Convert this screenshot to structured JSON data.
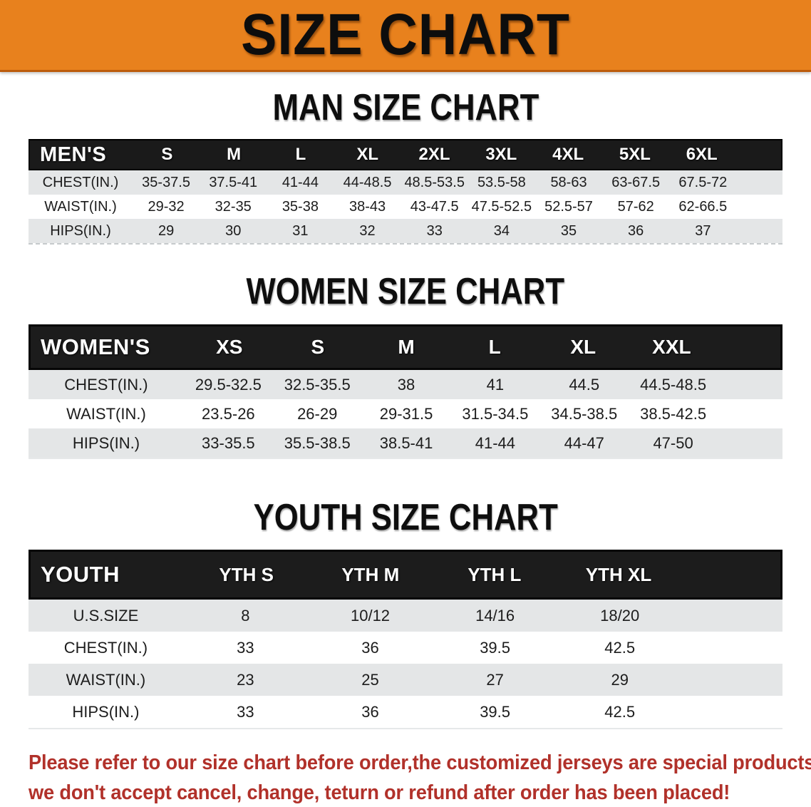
{
  "banner": {
    "title": "SIZE CHART"
  },
  "colors": {
    "banner_orange": "#E8811D",
    "banner_edge": "#BC5B0B",
    "header_black": "#1a1a1a",
    "row_gray": "#E4E6E7",
    "disclaimer_red": "#B1312A"
  },
  "chart_data": [
    {
      "type": "table",
      "title": "MAN SIZE CHART",
      "header_label": "MEN'S",
      "columns": [
        "S",
        "M",
        "L",
        "XL",
        "2XL",
        "3XL",
        "4XL",
        "5XL",
        "6XL"
      ],
      "rows": [
        {
          "label": "CHEST(IN.)",
          "values": [
            "35-37.5",
            "37.5-41",
            "41-44",
            "44-48.5",
            "48.5-53.5",
            "53.5-58",
            "58-63",
            "63-67.5",
            "67.5-72"
          ]
        },
        {
          "label": "WAIST(IN.)",
          "values": [
            "29-32",
            "32-35",
            "35-38",
            "38-43",
            "43-47.5",
            "47.5-52.5",
            "52.5-57",
            "57-62",
            "62-66.5"
          ]
        },
        {
          "label": "HIPS(IN.)",
          "values": [
            "29",
            "30",
            "31",
            "32",
            "33",
            "34",
            "35",
            "36",
            "37"
          ]
        }
      ]
    },
    {
      "type": "table",
      "title": "WOMEN SIZE CHART",
      "header_label": "WOMEN'S",
      "columns": [
        "XS",
        "S",
        "M",
        "L",
        "XL",
        "XXL"
      ],
      "rows": [
        {
          "label": "CHEST(IN.)",
          "values": [
            "29.5-32.5",
            "32.5-35.5",
            "38",
            "41",
            "44.5",
            "44.5-48.5"
          ]
        },
        {
          "label": "WAIST(IN.)",
          "values": [
            "23.5-26",
            "26-29",
            "29-31.5",
            "31.5-34.5",
            "34.5-38.5",
            "38.5-42.5"
          ]
        },
        {
          "label": "HIPS(IN.)",
          "values": [
            "33-35.5",
            "35.5-38.5",
            "38.5-41",
            "41-44",
            "44-47",
            "47-50"
          ]
        }
      ]
    },
    {
      "type": "table",
      "title": "YOUTH SIZE CHART",
      "header_label": "YOUTH",
      "columns": [
        "YTH S",
        "YTH M",
        "YTH L",
        "YTH XL"
      ],
      "rows": [
        {
          "label": "U.S.SIZE",
          "values": [
            "8",
            "10/12",
            "14/16",
            "18/20"
          ]
        },
        {
          "label": "CHEST(IN.)",
          "values": [
            "33",
            "36",
            "39.5",
            "42.5"
          ]
        },
        {
          "label": "WAIST(IN.)",
          "values": [
            "23",
            "25",
            "27",
            "29"
          ]
        },
        {
          "label": "HIPS(IN.)",
          "values": [
            "33",
            "36",
            "39.5",
            "42.5"
          ]
        }
      ]
    }
  ],
  "disclaimer": {
    "line1": "Please refer to our size chart before order,the customized jerseys are special products,",
    "line2": "we don't accept cancel, change, teturn or refund after order has been placed!"
  }
}
